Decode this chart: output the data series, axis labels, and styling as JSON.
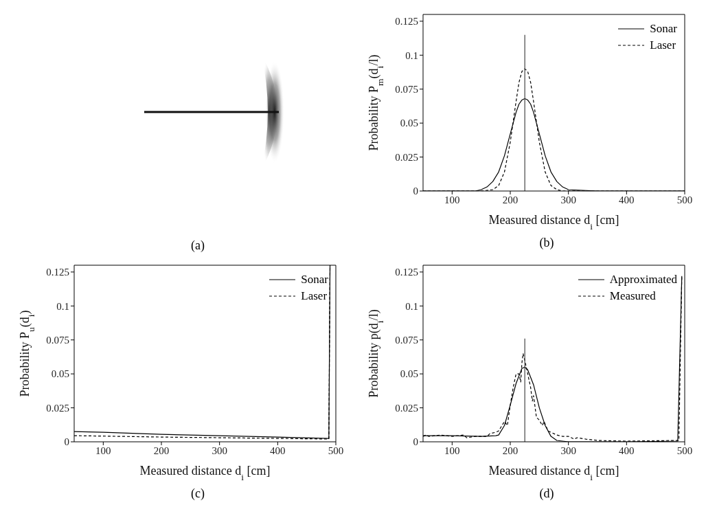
{
  "chart_data": [
    {
      "type": "other",
      "annotations": [
        "(a)"
      ]
    },
    {
      "type": "line",
      "xlabel": "Measured distance d$_{i}$ [cm]",
      "ylabel": "Probability P$_{m}$(d$_{i}$/l)",
      "xlim": [
        50,
        500
      ],
      "xticks": [
        100,
        200,
        300,
        400,
        500
      ],
      "ylim": [
        0,
        0.13
      ],
      "yticks": [
        0,
        0.025,
        0.05,
        0.075,
        0.1,
        0.125
      ],
      "legend": "top right",
      "annotations": [
        "(b)"
      ],
      "series": [
        {
          "name": "Sonar",
          "color": "#000000",
          "line_style": "solid",
          "x": [
            50,
            100,
            140,
            150,
            160,
            170,
            180,
            190,
            200,
            210,
            215,
            220,
            225,
            230,
            235,
            240,
            250,
            260,
            270,
            280,
            290,
            300,
            350,
            400,
            500
          ],
          "values": [
            0,
            0,
            0,
            0.001,
            0.003,
            0.007,
            0.014,
            0.026,
            0.042,
            0.058,
            0.064,
            0.067,
            0.068,
            0.067,
            0.064,
            0.058,
            0.042,
            0.026,
            0.014,
            0.007,
            0.003,
            0.001,
            0,
            0,
            0
          ]
        },
        {
          "name": "Laser",
          "color": "#000000",
          "line_style": "dashed",
          "x": [
            50,
            150,
            170,
            180,
            190,
            200,
            210,
            215,
            220,
            225,
            230,
            235,
            240,
            250,
            260,
            270,
            280,
            290,
            300,
            500
          ],
          "values": [
            0,
            0,
            0.001,
            0.004,
            0.014,
            0.036,
            0.066,
            0.08,
            0.088,
            0.09,
            0.088,
            0.08,
            0.066,
            0.036,
            0.014,
            0.004,
            0.001,
            0,
            0,
            0
          ]
        },
        {
          "color": "#444444",
          "line_style": "solid",
          "x": [
            225,
            225
          ],
          "values": [
            0,
            0.115
          ]
        }
      ]
    },
    {
      "type": "line",
      "xlabel": "Measured distance d$_{i}$ [cm]",
      "ylabel": "Probability P$_{u}$(d$_{i}$)",
      "xlim": [
        50,
        500
      ],
      "xticks": [
        100,
        200,
        300,
        400,
        500
      ],
      "ylim": [
        0,
        0.13
      ],
      "yticks": [
        0,
        0.025,
        0.05,
        0.075,
        0.1,
        0.125
      ],
      "legend": "top right",
      "annotations": [
        "(c)"
      ],
      "series": [
        {
          "name": "Sonar",
          "color": "#000000",
          "line_style": "solid",
          "x": [
            50,
            100,
            200,
            300,
            400,
            488,
            490
          ],
          "values": [
            0.0075,
            0.007,
            0.0055,
            0.0045,
            0.0035,
            0.0025,
            0.13
          ]
        },
        {
          "name": "Laser",
          "color": "#000000",
          "line_style": "dashed",
          "x": [
            50,
            100,
            200,
            300,
            400,
            488,
            490
          ],
          "values": [
            0.0045,
            0.0042,
            0.0035,
            0.003,
            0.0025,
            0.002,
            0.13
          ]
        }
      ]
    },
    {
      "type": "line",
      "xlabel": "Measured distance d$_{i}$ [cm]",
      "ylabel": "Probability p(d$_{i}$/l)",
      "xlim": [
        50,
        500
      ],
      "xticks": [
        100,
        200,
        300,
        400,
        500
      ],
      "ylim": [
        0,
        0.13
      ],
      "yticks": [
        0,
        0.025,
        0.05,
        0.075,
        0.1,
        0.125
      ],
      "legend": "top right",
      "annotations": [
        "(d)"
      ],
      "series": [
        {
          "name": "Approximated",
          "color": "#000000",
          "line_style": "solid",
          "x": [
            50,
            100,
            150,
            175,
            180,
            190,
            200,
            210,
            220,
            225,
            230,
            240,
            250,
            260,
            270,
            280,
            300,
            400,
            488,
            495
          ],
          "values": [
            0.0045,
            0.0045,
            0.004,
            0.0045,
            0.005,
            0.012,
            0.027,
            0.043,
            0.054,
            0.055,
            0.053,
            0.042,
            0.025,
            0.012,
            0.004,
            0.001,
            0,
            0,
            0.0005,
            0.122
          ]
        },
        {
          "name": "Measured",
          "color": "#000000",
          "line_style": "dashed",
          "x": [
            50,
            55,
            60,
            80,
            100,
            120,
            125,
            140,
            160,
            165,
            175,
            180,
            190,
            195,
            200,
            205,
            210,
            215,
            218,
            220,
            222,
            225,
            230,
            235,
            238,
            240,
            245,
            250,
            255,
            258,
            265,
            270,
            280,
            290,
            300,
            310,
            315,
            330,
            350,
            400,
            490,
            495
          ],
          "values": [
            0.004,
            0.005,
            0.004,
            0.005,
            0.004,
            0.005,
            0.003,
            0.004,
            0.004,
            0.006,
            0.007,
            0.008,
            0.015,
            0.012,
            0.027,
            0.04,
            0.05,
            0.05,
            0.044,
            0.058,
            0.065,
            0.06,
            0.05,
            0.04,
            0.03,
            0.034,
            0.018,
            0.016,
            0.012,
            0.015,
            0.008,
            0.007,
            0.005,
            0.004,
            0.004,
            0.002,
            0.003,
            0.002,
            0.001,
            0.0005,
            0.001,
            0.122
          ]
        },
        {
          "color": "#444444",
          "line_style": "solid",
          "x": [
            225,
            225
          ],
          "values": [
            0,
            0.076
          ]
        }
      ]
    }
  ]
}
